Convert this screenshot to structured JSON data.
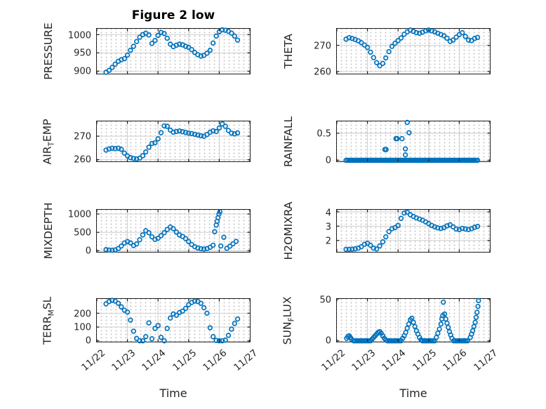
{
  "figure": {
    "title": "Figure 2 low"
  },
  "styles": {
    "marker_color": "#0072bd",
    "grid_major_color": "#cdcdcd",
    "grid_minor_dot_color": "#c6c6c6",
    "axis_color": "#1f1f1f",
    "tick_text_color": "#252525",
    "background": "#ffffff"
  },
  "time_axis": {
    "label": "Time",
    "xlim": [
      0,
      5
    ],
    "tick_days": [
      0,
      1,
      2,
      3,
      4,
      5
    ],
    "tick_labels": [
      "11/22",
      "11/23",
      "11/24",
      "11/25",
      "11/26",
      "11/27"
    ],
    "sample_days": [
      0.3,
      0.4,
      0.5,
      0.6,
      0.7,
      0.8,
      0.9,
      1.0,
      1.1,
      1.2,
      1.3,
      1.4,
      1.5,
      1.6,
      1.7,
      1.8,
      1.9,
      2.0,
      2.1,
      2.2,
      2.3,
      2.4,
      2.5,
      2.6,
      2.7,
      2.8,
      2.9,
      3.0,
      3.1,
      3.2,
      3.3,
      3.4,
      3.5,
      3.6,
      3.7,
      3.8,
      3.9,
      4.0,
      4.1,
      4.2,
      4.3,
      4.4,
      4.5,
      4.6
    ]
  },
  "chart_data": [
    {
      "name": "pressure",
      "type": "scatter",
      "row": 0,
      "col": 0,
      "ylabel": "PRESSURE",
      "ylabel_parts": [
        {
          "text": "PRESSURE",
          "sub": false
        }
      ],
      "yticks": [
        900,
        950,
        1000
      ],
      "ylim": [
        893,
        1016
      ],
      "y": [
        897,
        902,
        910,
        919,
        927,
        931,
        934,
        944,
        957,
        968,
        981,
        993,
        1000,
        1004,
        999,
        976,
        984,
        998,
        1006,
        1003,
        990,
        974,
        967,
        971,
        974,
        972,
        968,
        965,
        959,
        951,
        945,
        941,
        943,
        949,
        957,
        977,
        996,
        1008,
        1013,
        1012,
        1009,
        1004,
        996,
        985
      ]
    },
    {
      "name": "theta",
      "type": "scatter",
      "row": 0,
      "col": 1,
      "ylabel": "THETA",
      "ylabel_parts": [
        {
          "text": "THETA",
          "sub": false
        }
      ],
      "yticks": [
        260,
        270
      ],
      "ylim": [
        259.2,
        276.3
      ],
      "y": [
        272.3,
        272.9,
        272.6,
        272.2,
        271.7,
        271.0,
        270.1,
        269.2,
        267.4,
        265.3,
        263.4,
        262.2,
        263.1,
        265.2,
        267.6,
        269.6,
        270.8,
        271.8,
        272.8,
        274.2,
        275.1,
        275.8,
        275.3,
        274.8,
        274.6,
        275.0,
        275.5,
        275.8,
        275.5,
        275.1,
        274.6,
        274.1,
        273.6,
        272.7,
        271.5,
        272.0,
        273.1,
        274.1,
        274.8,
        273.4,
        272.0,
        271.8,
        272.6,
        273.0
      ]
    },
    {
      "name": "air-temp",
      "type": "scatter",
      "row": 1,
      "col": 0,
      "ylabel": "AIR_TEMP",
      "ylabel_parts": [
        {
          "text": "AIR",
          "sub": false
        },
        {
          "text": "T",
          "sub": true
        },
        {
          "text": "EMP",
          "sub": false
        }
      ],
      "yticks": [
        260,
        270
      ],
      "ylim": [
        259.3,
        276.3
      ],
      "y": [
        264.1,
        264.6,
        264.9,
        264.7,
        264.9,
        264.4,
        262.8,
        261.6,
        260.9,
        260.5,
        260.3,
        260.7,
        261.7,
        263.3,
        265.3,
        266.9,
        267.2,
        268.9,
        271.5,
        274.4,
        274.2,
        272.6,
        271.7,
        272.0,
        272.2,
        271.9,
        271.6,
        271.3,
        271.1,
        270.8,
        270.5,
        270.2,
        270.0,
        270.7,
        271.7,
        272.3,
        272.0,
        273.5,
        275.2,
        274.2,
        272.4,
        271.3,
        271.0,
        271.4
      ]
    },
    {
      "name": "rainfall",
      "type": "scatter",
      "row": 1,
      "col": 1,
      "ylabel": "RAINFALL",
      "ylabel_parts": [
        {
          "text": "RAINFALL",
          "sub": false
        }
      ],
      "yticks": [
        0,
        0.5
      ],
      "ylim": [
        -0.02,
        0.72
      ],
      "x": [
        1.57,
        1.61,
        1.93,
        1.97,
        2.13,
        2.24,
        2.24,
        2.3,
        2.36
      ],
      "y": [
        0.2,
        0.2,
        0.4,
        0.4,
        0.4,
        0.1,
        0.21,
        0.7,
        0.51
      ],
      "zero_runs": [
        [
          0.3,
          4.6
        ]
      ],
      "zero_step": 0.05
    },
    {
      "name": "mixdepth",
      "type": "scatter",
      "row": 2,
      "col": 0,
      "ylabel": "MIXDEPTH",
      "ylabel_parts": [
        {
          "text": "MIXDEPTH",
          "sub": false
        }
      ],
      "yticks": [
        0,
        500,
        1000
      ],
      "ylim": [
        -30,
        1115
      ],
      "x": [
        0.3,
        0.4,
        0.5,
        0.6,
        0.7,
        0.8,
        0.9,
        1.0,
        1.1,
        1.2,
        1.3,
        1.4,
        1.5,
        1.6,
        1.7,
        1.8,
        1.9,
        2.0,
        2.1,
        2.2,
        2.3,
        2.4,
        2.5,
        2.6,
        2.7,
        2.8,
        2.9,
        3.0,
        3.1,
        3.2,
        3.3,
        3.4,
        3.5,
        3.6,
        3.7,
        3.8,
        3.85,
        3.9,
        3.93,
        3.96,
        3.99,
        4.02,
        4.05,
        4.15,
        4.25,
        4.35,
        4.45,
        4.55
      ],
      "y": [
        30,
        18,
        14,
        22,
        60,
        130,
        210,
        250,
        215,
        140,
        185,
        300,
        430,
        545,
        490,
        380,
        310,
        340,
        410,
        490,
        580,
        645,
        600,
        510,
        430,
        390,
        330,
        250,
        170,
        110,
        75,
        55,
        45,
        60,
        95,
        150,
        520,
        700,
        800,
        900,
        1000,
        1060,
        130,
        365,
        65,
        125,
        190,
        255
      ]
    },
    {
      "name": "h2omixra",
      "type": "scatter",
      "row": 2,
      "col": 1,
      "ylabel": "H2OMIXRA",
      "ylabel_parts": [
        {
          "text": "H2OMIXRA",
          "sub": false
        }
      ],
      "yticks": [
        2,
        3,
        4
      ],
      "ylim": [
        1.2,
        4.15
      ],
      "y": [
        1.38,
        1.38,
        1.39,
        1.41,
        1.46,
        1.56,
        1.73,
        1.8,
        1.66,
        1.46,
        1.4,
        1.62,
        1.9,
        2.25,
        2.62,
        2.82,
        2.9,
        3.05,
        3.55,
        3.92,
        3.98,
        3.8,
        3.68,
        3.58,
        3.5,
        3.42,
        3.3,
        3.18,
        3.05,
        2.95,
        2.88,
        2.84,
        2.9,
        3.02,
        3.1,
        2.95,
        2.8,
        2.76,
        2.84,
        2.8,
        2.76,
        2.82,
        2.92,
        2.98
      ]
    },
    {
      "name": "terr-msl",
      "type": "scatter",
      "row": 3,
      "col": 0,
      "ylabel": "TERR_MSL",
      "ylabel_parts": [
        {
          "text": "TERR",
          "sub": false
        },
        {
          "text": "M",
          "sub": true
        },
        {
          "text": "SL",
          "sub": false
        }
      ],
      "yticks": [
        0,
        100,
        200
      ],
      "ylim": [
        -6,
        304
      ],
      "y": [
        268,
        285,
        293,
        288,
        272,
        246,
        222,
        208,
        150,
        70,
        18,
        0,
        0,
        30,
        130,
        15,
        90,
        110,
        25,
        0,
        90,
        165,
        195,
        185,
        205,
        215,
        235,
        262,
        278,
        288,
        285,
        272,
        240,
        200,
        95,
        30,
        3,
        0,
        0,
        5,
        40,
        85,
        125,
        158
      ]
    },
    {
      "name": "sun-flux",
      "type": "scatter",
      "row": 3,
      "col": 1,
      "ylabel": "SUN_FLUX",
      "ylabel_parts": [
        {
          "text": "SUN",
          "sub": false
        },
        {
          "text": "F",
          "sub": true
        },
        {
          "text": "LUX",
          "sub": false
        }
      ],
      "yticks": [
        0,
        50
      ],
      "ylim": [
        -1,
        50
      ],
      "x": [
        0.32,
        0.36,
        0.4,
        0.44,
        0.48,
        1.15,
        1.2,
        1.25,
        1.3,
        1.35,
        1.4,
        1.45,
        1.5,
        1.55,
        1.6,
        2.15,
        2.2,
        2.25,
        2.3,
        2.35,
        2.4,
        2.45,
        2.5,
        2.55,
        2.6,
        2.65,
        2.7,
        2.75,
        3.25,
        3.3,
        3.35,
        3.4,
        3.43,
        3.46,
        3.48,
        3.52,
        3.56,
        3.6,
        3.64,
        3.68,
        3.72,
        3.76,
        4.36,
        4.4,
        4.44,
        4.48,
        4.52,
        4.55,
        4.58,
        4.61,
        4.63
      ],
      "y": [
        3,
        5,
        6,
        4,
        2,
        2,
        4,
        6,
        8,
        10,
        11,
        9,
        6,
        3,
        1,
        3,
        6,
        10,
        15,
        20,
        25,
        27,
        22,
        17,
        12,
        8,
        4,
        1,
        4,
        9,
        14,
        20,
        26,
        30,
        46,
        32,
        26,
        21,
        16,
        11,
        7,
        3,
        4,
        8,
        12,
        17,
        22,
        28,
        34,
        41,
        48
      ],
      "zero_runs": [
        [
          0.55,
          1.1
        ],
        [
          1.65,
          2.1
        ],
        [
          2.8,
          3.2
        ],
        [
          3.82,
          4.3
        ]
      ],
      "zero_step": 0.05
    }
  ]
}
